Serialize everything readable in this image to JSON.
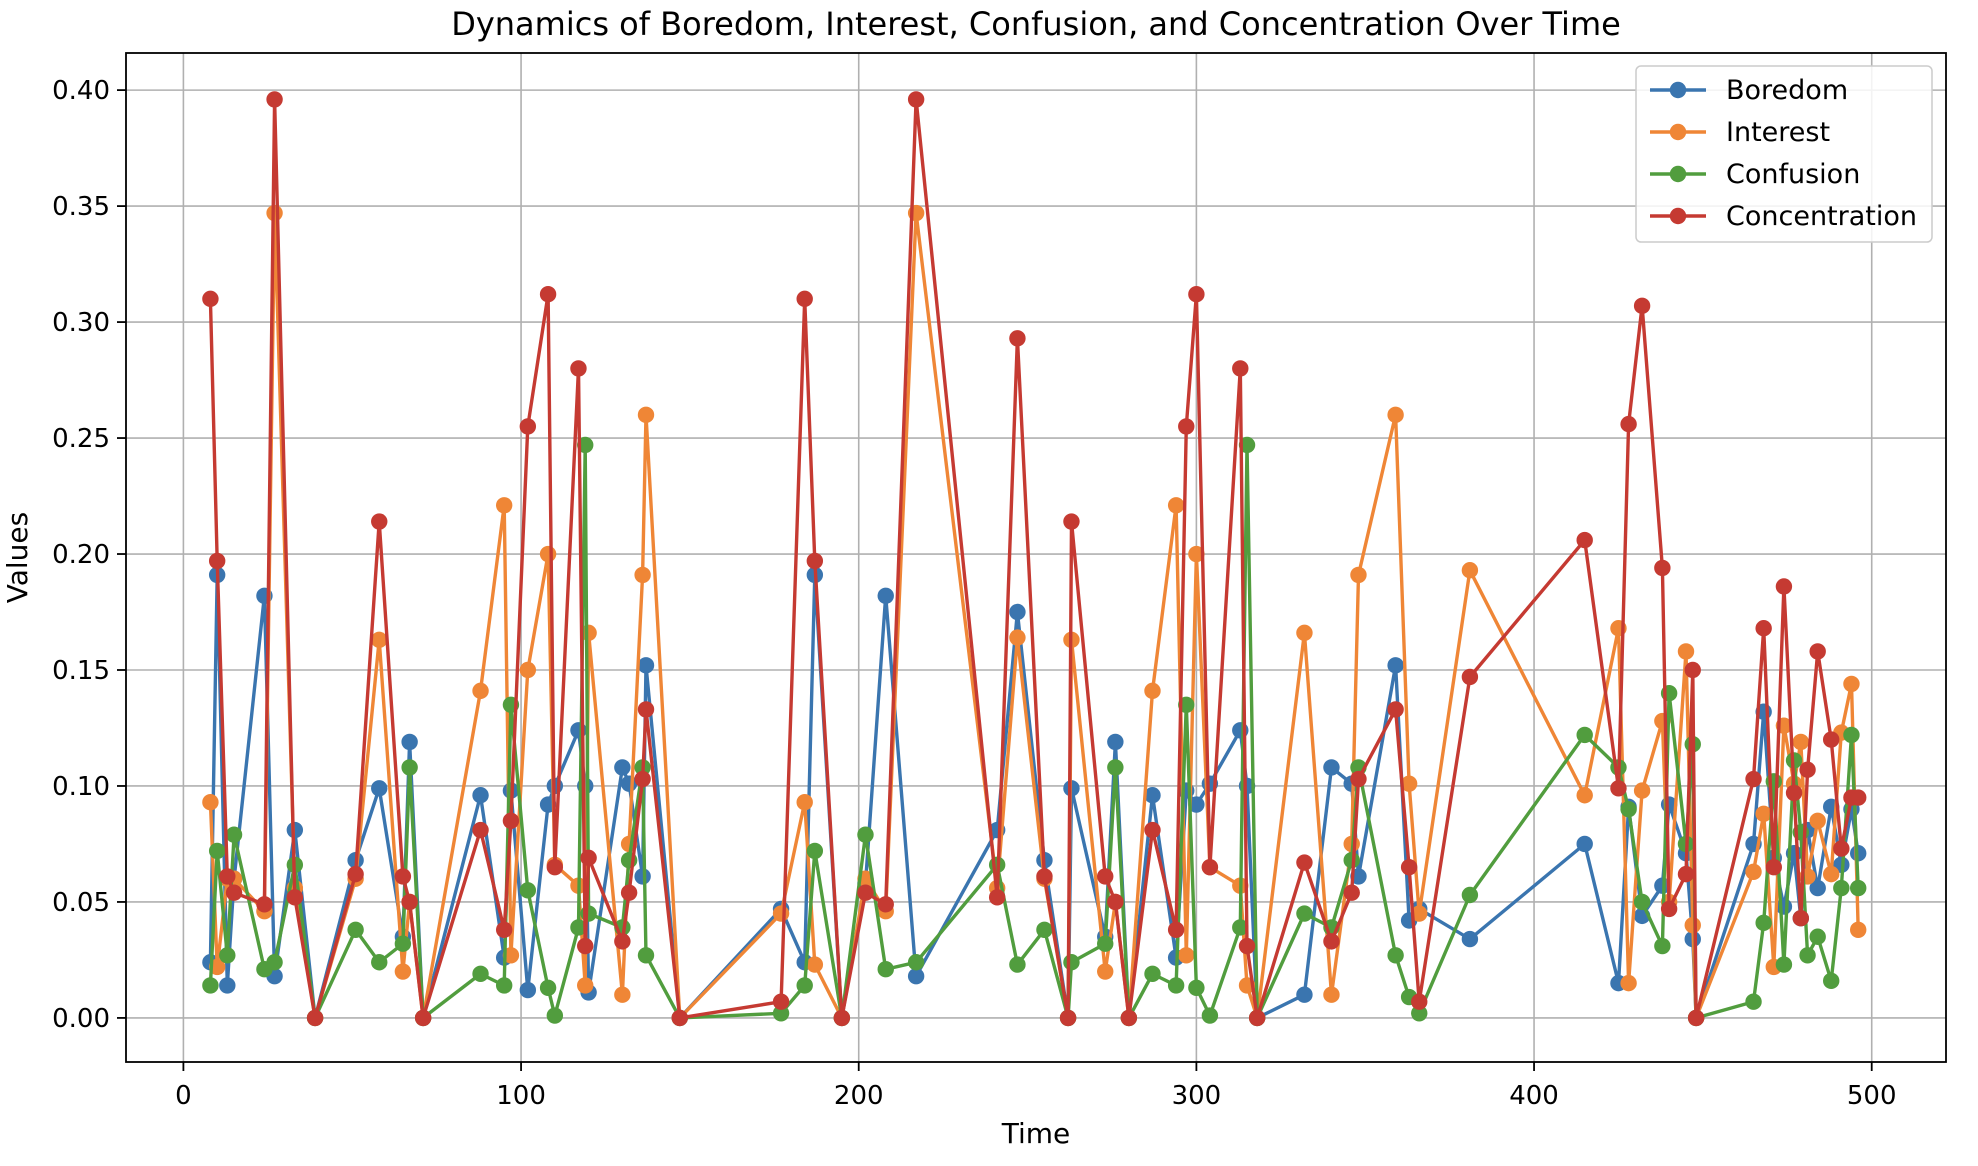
{
  "chart_data": {
    "type": "line",
    "title": "Dynamics of Boredom, Interest, Confusion, and Concentration Over Time",
    "xlabel": "Time",
    "ylabel": "Values",
    "xlim": [
      -17,
      522
    ],
    "ylim": [
      -0.019,
      0.416
    ],
    "xticks": [
      0,
      100,
      200,
      300,
      400,
      500
    ],
    "yticks": [
      0.0,
      0.05,
      0.1,
      0.15,
      0.2,
      0.25,
      0.3,
      0.35,
      0.4
    ],
    "ytick_labels": [
      "0.00",
      "0.05",
      "0.10",
      "0.15",
      "0.20",
      "0.25",
      "0.30",
      "0.35",
      "0.40"
    ],
    "grid": true,
    "legend_position": "top-right",
    "x": [
      8,
      10,
      13,
      15,
      24,
      27,
      33,
      39,
      51,
      58,
      65,
      67,
      71,
      88,
      95,
      97,
      102,
      108,
      110,
      117,
      119,
      120,
      130,
      132,
      136,
      137,
      147,
      177,
      184,
      187,
      195,
      202,
      208,
      217,
      241,
      247,
      255,
      262,
      263,
      273,
      276,
      280,
      287,
      294,
      297,
      300,
      304,
      313,
      315,
      318,
      332,
      340,
      346,
      348,
      359,
      363,
      366,
      381,
      415,
      425,
      428,
      432,
      438,
      440,
      445,
      447,
      448,
      465,
      468,
      471,
      474,
      477,
      479,
      481,
      484,
      488,
      491,
      494,
      496
    ],
    "series": [
      {
        "name": "Boredom",
        "color": "#3a75af",
        "values": [
          0.024,
          0.191,
          0.014,
          0.06,
          0.182,
          0.018,
          0.081,
          0.0,
          0.068,
          0.099,
          0.035,
          0.119,
          0.0,
          0.096,
          0.026,
          0.098,
          0.012,
          0.092,
          0.1,
          0.124,
          0.1,
          0.011,
          0.108,
          0.101,
          0.061,
          0.152,
          0.0,
          0.047,
          0.024,
          0.191,
          0.0,
          0.058,
          0.182,
          0.018,
          0.081,
          0.175,
          0.068,
          0.0,
          0.099,
          0.035,
          0.119,
          0.0,
          0.096,
          0.026,
          0.098,
          0.092,
          0.101,
          0.124,
          0.1,
          0.0,
          0.01,
          0.108,
          0.101,
          0.061,
          0.152,
          0.042,
          0.047,
          0.034,
          0.075,
          0.015,
          0.091,
          0.044,
          0.057,
          0.092,
          0.071,
          0.034,
          0.0,
          0.075,
          0.132,
          0.069,
          0.048,
          0.071,
          0.043,
          0.081,
          0.056,
          0.091,
          0.066,
          0.09,
          0.071
        ]
      },
      {
        "name": "Interest",
        "color": "#ef8636",
        "values": [
          0.093,
          0.022,
          0.06,
          0.06,
          0.046,
          0.347,
          0.056,
          0.0,
          0.06,
          0.163,
          0.02,
          0.05,
          0.0,
          0.141,
          0.221,
          0.027,
          0.15,
          0.2,
          0.066,
          0.057,
          0.014,
          0.166,
          0.01,
          0.075,
          0.191,
          0.26,
          0.0,
          0.045,
          0.093,
          0.023,
          0.0,
          0.06,
          0.046,
          0.347,
          0.056,
          0.164,
          0.06,
          0.0,
          0.163,
          0.02,
          0.05,
          0.0,
          0.141,
          0.221,
          0.027,
          0.2,
          0.065,
          0.057,
          0.014,
          0.0,
          0.166,
          0.01,
          0.075,
          0.191,
          0.26,
          0.101,
          0.045,
          0.193,
          0.096,
          0.168,
          0.015,
          0.098,
          0.128,
          0.05,
          0.158,
          0.04,
          0.0,
          0.063,
          0.088,
          0.022,
          0.126,
          0.101,
          0.119,
          0.061,
          0.085,
          0.062,
          0.123,
          0.144,
          0.038
        ]
      },
      {
        "name": "Confusion",
        "color": "#519d3e",
        "values": [
          0.014,
          0.072,
          0.027,
          0.079,
          0.021,
          0.024,
          0.066,
          0.0,
          0.038,
          0.024,
          0.032,
          0.108,
          0.0,
          0.019,
          0.014,
          0.135,
          0.055,
          0.013,
          0.001,
          0.039,
          0.247,
          0.045,
          0.039,
          0.068,
          0.108,
          0.027,
          0.0,
          0.002,
          0.014,
          0.072,
          0.0,
          0.079,
          0.021,
          0.024,
          0.066,
          0.023,
          0.038,
          0.0,
          0.024,
          0.032,
          0.108,
          0.0,
          0.019,
          0.014,
          0.135,
          0.013,
          0.001,
          0.039,
          0.247,
          0.0,
          0.045,
          0.039,
          0.068,
          0.108,
          0.027,
          0.009,
          0.002,
          0.053,
          0.122,
          0.108,
          0.09,
          0.05,
          0.031,
          0.14,
          0.075,
          0.118,
          0.0,
          0.007,
          0.041,
          0.102,
          0.023,
          0.111,
          0.08,
          0.027,
          0.035,
          0.016,
          0.056,
          0.122,
          0.056
        ]
      },
      {
        "name": "Concentration",
        "color": "#c53a32",
        "values": [
          0.31,
          0.197,
          0.061,
          0.054,
          0.049,
          0.396,
          0.052,
          0.0,
          0.062,
          0.214,
          0.061,
          0.05,
          0.0,
          0.081,
          0.038,
          0.085,
          0.255,
          0.312,
          0.065,
          0.28,
          0.031,
          0.069,
          0.033,
          0.054,
          0.103,
          0.133,
          0.0,
          0.007,
          0.31,
          0.197,
          0.0,
          0.054,
          0.049,
          0.396,
          0.052,
          0.293,
          0.061,
          0.0,
          0.214,
          0.061,
          0.05,
          0.0,
          0.081,
          0.038,
          0.255,
          0.312,
          0.065,
          0.28,
          0.031,
          0.0,
          0.067,
          0.033,
          0.054,
          0.103,
          0.133,
          0.065,
          0.007,
          0.147,
          0.206,
          0.099,
          0.256,
          0.307,
          0.194,
          0.047,
          0.062,
          0.15,
          0.0,
          0.103,
          0.168,
          0.065,
          0.186,
          0.097,
          0.043,
          0.107,
          0.158,
          0.12,
          0.073,
          0.095,
          0.095
        ]
      }
    ]
  }
}
